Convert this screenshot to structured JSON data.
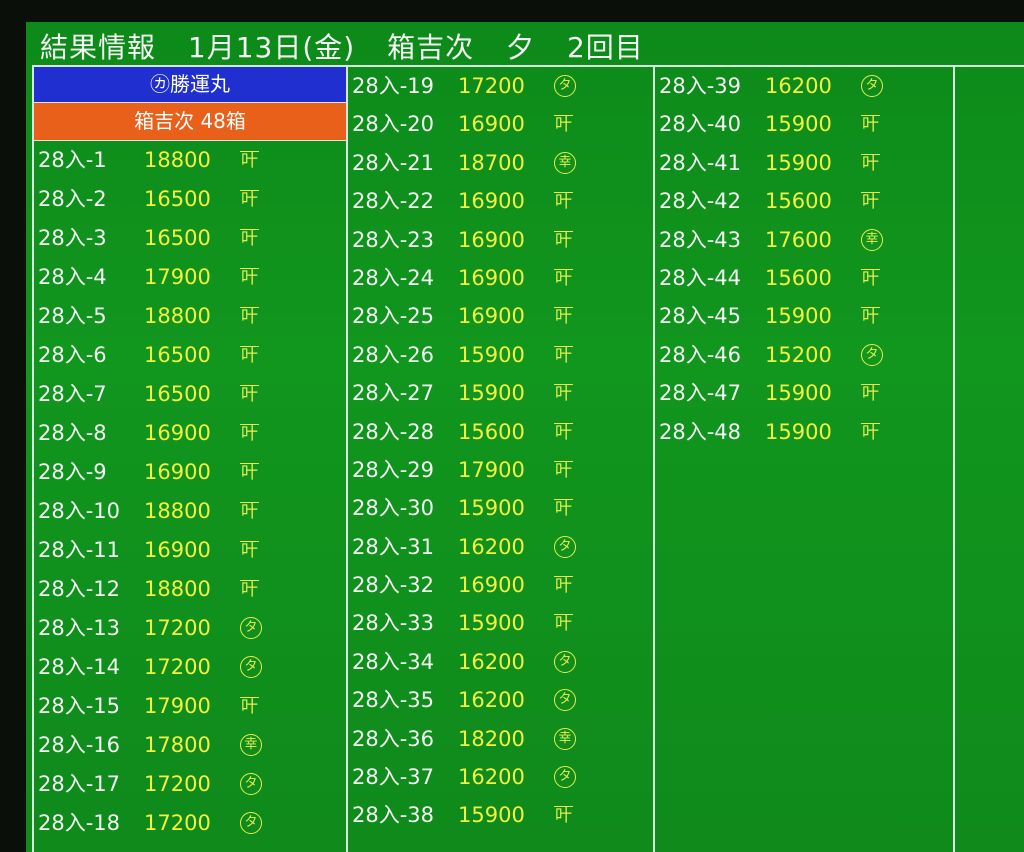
{
  "title": {
    "label": "結果情報",
    "date": "1月13日(金)",
    "item": "箱吉次",
    "session": "夕",
    "round": "2回目"
  },
  "header": {
    "buyer": "㋕勝運丸",
    "summary": "箱吉次 48箱"
  },
  "columns": [
    [
      [
        "28入-1",
        "18800",
        "叶"
      ],
      [
        "28入-2",
        "16500",
        "叶"
      ],
      [
        "28入-3",
        "16500",
        "叶"
      ],
      [
        "28入-4",
        "17900",
        "叶"
      ],
      [
        "28入-5",
        "18800",
        "叶"
      ],
      [
        "28入-6",
        "16500",
        "叶"
      ],
      [
        "28入-7",
        "16500",
        "叶"
      ],
      [
        "28入-8",
        "16900",
        "叶"
      ],
      [
        "28入-9",
        "16900",
        "叶"
      ],
      [
        "28入-10",
        "18800",
        "叶"
      ],
      [
        "28入-11",
        "16900",
        "叶"
      ],
      [
        "28入-12",
        "18800",
        "叶"
      ],
      [
        "28入-13",
        "17200",
        "タ"
      ],
      [
        "28入-14",
        "17200",
        "タ"
      ],
      [
        "28入-15",
        "17900",
        "叶"
      ],
      [
        "28入-16",
        "17800",
        "幸"
      ],
      [
        "28入-17",
        "17200",
        "タ"
      ],
      [
        "28入-18",
        "17200",
        "タ"
      ]
    ],
    [
      [
        "28入-19",
        "17200",
        "タ"
      ],
      [
        "28入-20",
        "16900",
        "叶"
      ],
      [
        "28入-21",
        "18700",
        "幸"
      ],
      [
        "28入-22",
        "16900",
        "叶"
      ],
      [
        "28入-23",
        "16900",
        "叶"
      ],
      [
        "28入-24",
        "16900",
        "叶"
      ],
      [
        "28入-25",
        "16900",
        "叶"
      ],
      [
        "28入-26",
        "15900",
        "叶"
      ],
      [
        "28入-27",
        "15900",
        "叶"
      ],
      [
        "28入-28",
        "15600",
        "叶"
      ],
      [
        "28入-29",
        "17900",
        "叶"
      ],
      [
        "28入-30",
        "15900",
        "叶"
      ],
      [
        "28入-31",
        "16200",
        "タ"
      ],
      [
        "28入-32",
        "16900",
        "叶"
      ],
      [
        "28入-33",
        "15900",
        "叶"
      ],
      [
        "28入-34",
        "16200",
        "タ"
      ],
      [
        "28入-35",
        "16200",
        "タ"
      ],
      [
        "28入-36",
        "18200",
        "幸"
      ],
      [
        "28入-37",
        "16200",
        "タ"
      ],
      [
        "28入-38",
        "15900",
        "叶"
      ]
    ],
    [
      [
        "28入-39",
        "16200",
        "タ"
      ],
      [
        "28入-40",
        "15900",
        "叶"
      ],
      [
        "28入-41",
        "15900",
        "叶"
      ],
      [
        "28入-42",
        "15600",
        "叶"
      ],
      [
        "28入-43",
        "17600",
        "幸"
      ],
      [
        "28入-44",
        "15600",
        "叶"
      ],
      [
        "28入-45",
        "15900",
        "叶"
      ],
      [
        "28入-46",
        "15200",
        "タ"
      ],
      [
        "28入-47",
        "15900",
        "叶"
      ],
      [
        "28入-48",
        "15900",
        "叶"
      ]
    ]
  ],
  "colors": {
    "board": "#11961e",
    "buyer_bg": "#1f2fd0",
    "summary_bg": "#e8601a",
    "price": "#f2f240"
  }
}
